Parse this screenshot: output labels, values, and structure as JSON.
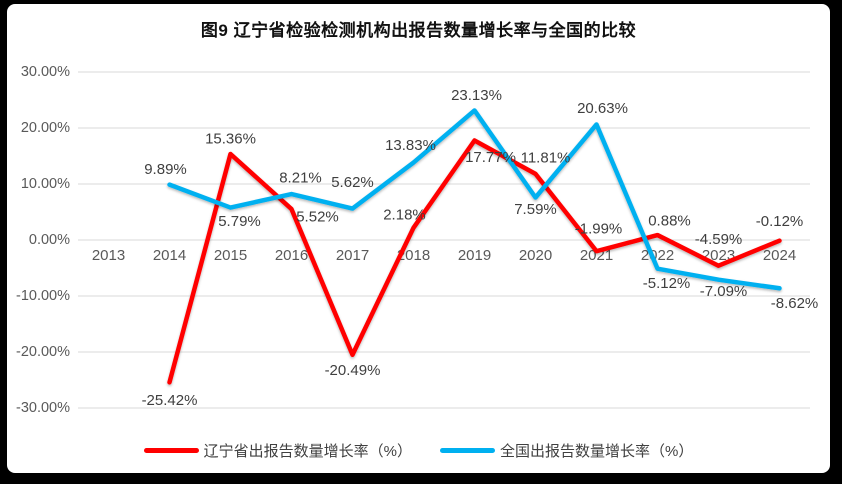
{
  "chart_data": {
    "type": "line",
    "title": "图9  辽宁省检验检测机构出报告数量增长率与全国的比较",
    "categories": [
      "2013",
      "2014",
      "2015",
      "2016",
      "2017",
      "2018",
      "2019",
      "2020",
      "2021",
      "2022",
      "2023",
      "2024"
    ],
    "ylim": [
      -30,
      30
    ],
    "ytick_step": 10,
    "ytick_labels": [
      "30.00%",
      "20.00%",
      "10.00%",
      "0.00%",
      "-10.00%",
      "-20.00%",
      "-30.00%"
    ],
    "grid": true,
    "legend_position": "bottom",
    "axis_text_color": "#595959",
    "gridline_color": "#d9d9d9",
    "data_label_color": "#3f3f3f",
    "series": [
      {
        "name": "辽宁省出报告数量增长率（%）",
        "color": "#ff0000",
        "x": [
          "2014",
          "2015",
          "2016",
          "2017",
          "2018",
          "2019",
          "2020",
          "2021",
          "2022",
          "2023",
          "2024"
        ],
        "values": [
          -25.42,
          15.36,
          5.52,
          -20.49,
          2.18,
          17.77,
          11.81,
          -1.99,
          0.88,
          -4.59,
          -0.12
        ],
        "labels": [
          "-25.42%",
          "15.36%",
          "5.52%",
          "-20.49%",
          "2.18%",
          "17.77%",
          "11.81%",
          "-1.99%",
          "0.88%",
          "-4.59%",
          "-0.12%"
        ],
        "label_offsets": [
          [
            0,
            18
          ],
          [
            0,
            -15
          ],
          [
            26,
            8
          ],
          [
            0,
            16
          ],
          [
            -9,
            -13
          ],
          [
            16,
            17
          ],
          [
            10,
            -16
          ],
          [
            2,
            -22
          ],
          [
            12,
            -14
          ],
          [
            0,
            -26
          ],
          [
            0,
            -19
          ]
        ]
      },
      {
        "name": "全国出报告数量增长率（%）",
        "color": "#00b0f0",
        "x": [
          "2014",
          "2015",
          "2016",
          "2017",
          "2018",
          "2019",
          "2020",
          "2021",
          "2022",
          "2023",
          "2024"
        ],
        "values": [
          9.89,
          5.79,
          8.21,
          5.62,
          13.83,
          23.13,
          7.59,
          20.63,
          -5.12,
          -7.09,
          -8.62
        ],
        "labels": [
          "9.89%",
          "5.79%",
          "8.21%",
          "5.62%",
          "13.83%",
          "23.13%",
          "7.59%",
          "20.63%",
          "-5.12%",
          "-7.09%",
          "-8.62%"
        ],
        "label_offsets": [
          [
            -4,
            -15
          ],
          [
            9,
            14
          ],
          [
            9,
            -16
          ],
          [
            0,
            -26
          ],
          [
            -3,
            -17
          ],
          [
            2,
            -15
          ],
          [
            0,
            12
          ],
          [
            6,
            -16
          ],
          [
            9,
            15
          ],
          [
            5,
            12
          ],
          [
            15,
            15
          ]
        ]
      }
    ]
  }
}
